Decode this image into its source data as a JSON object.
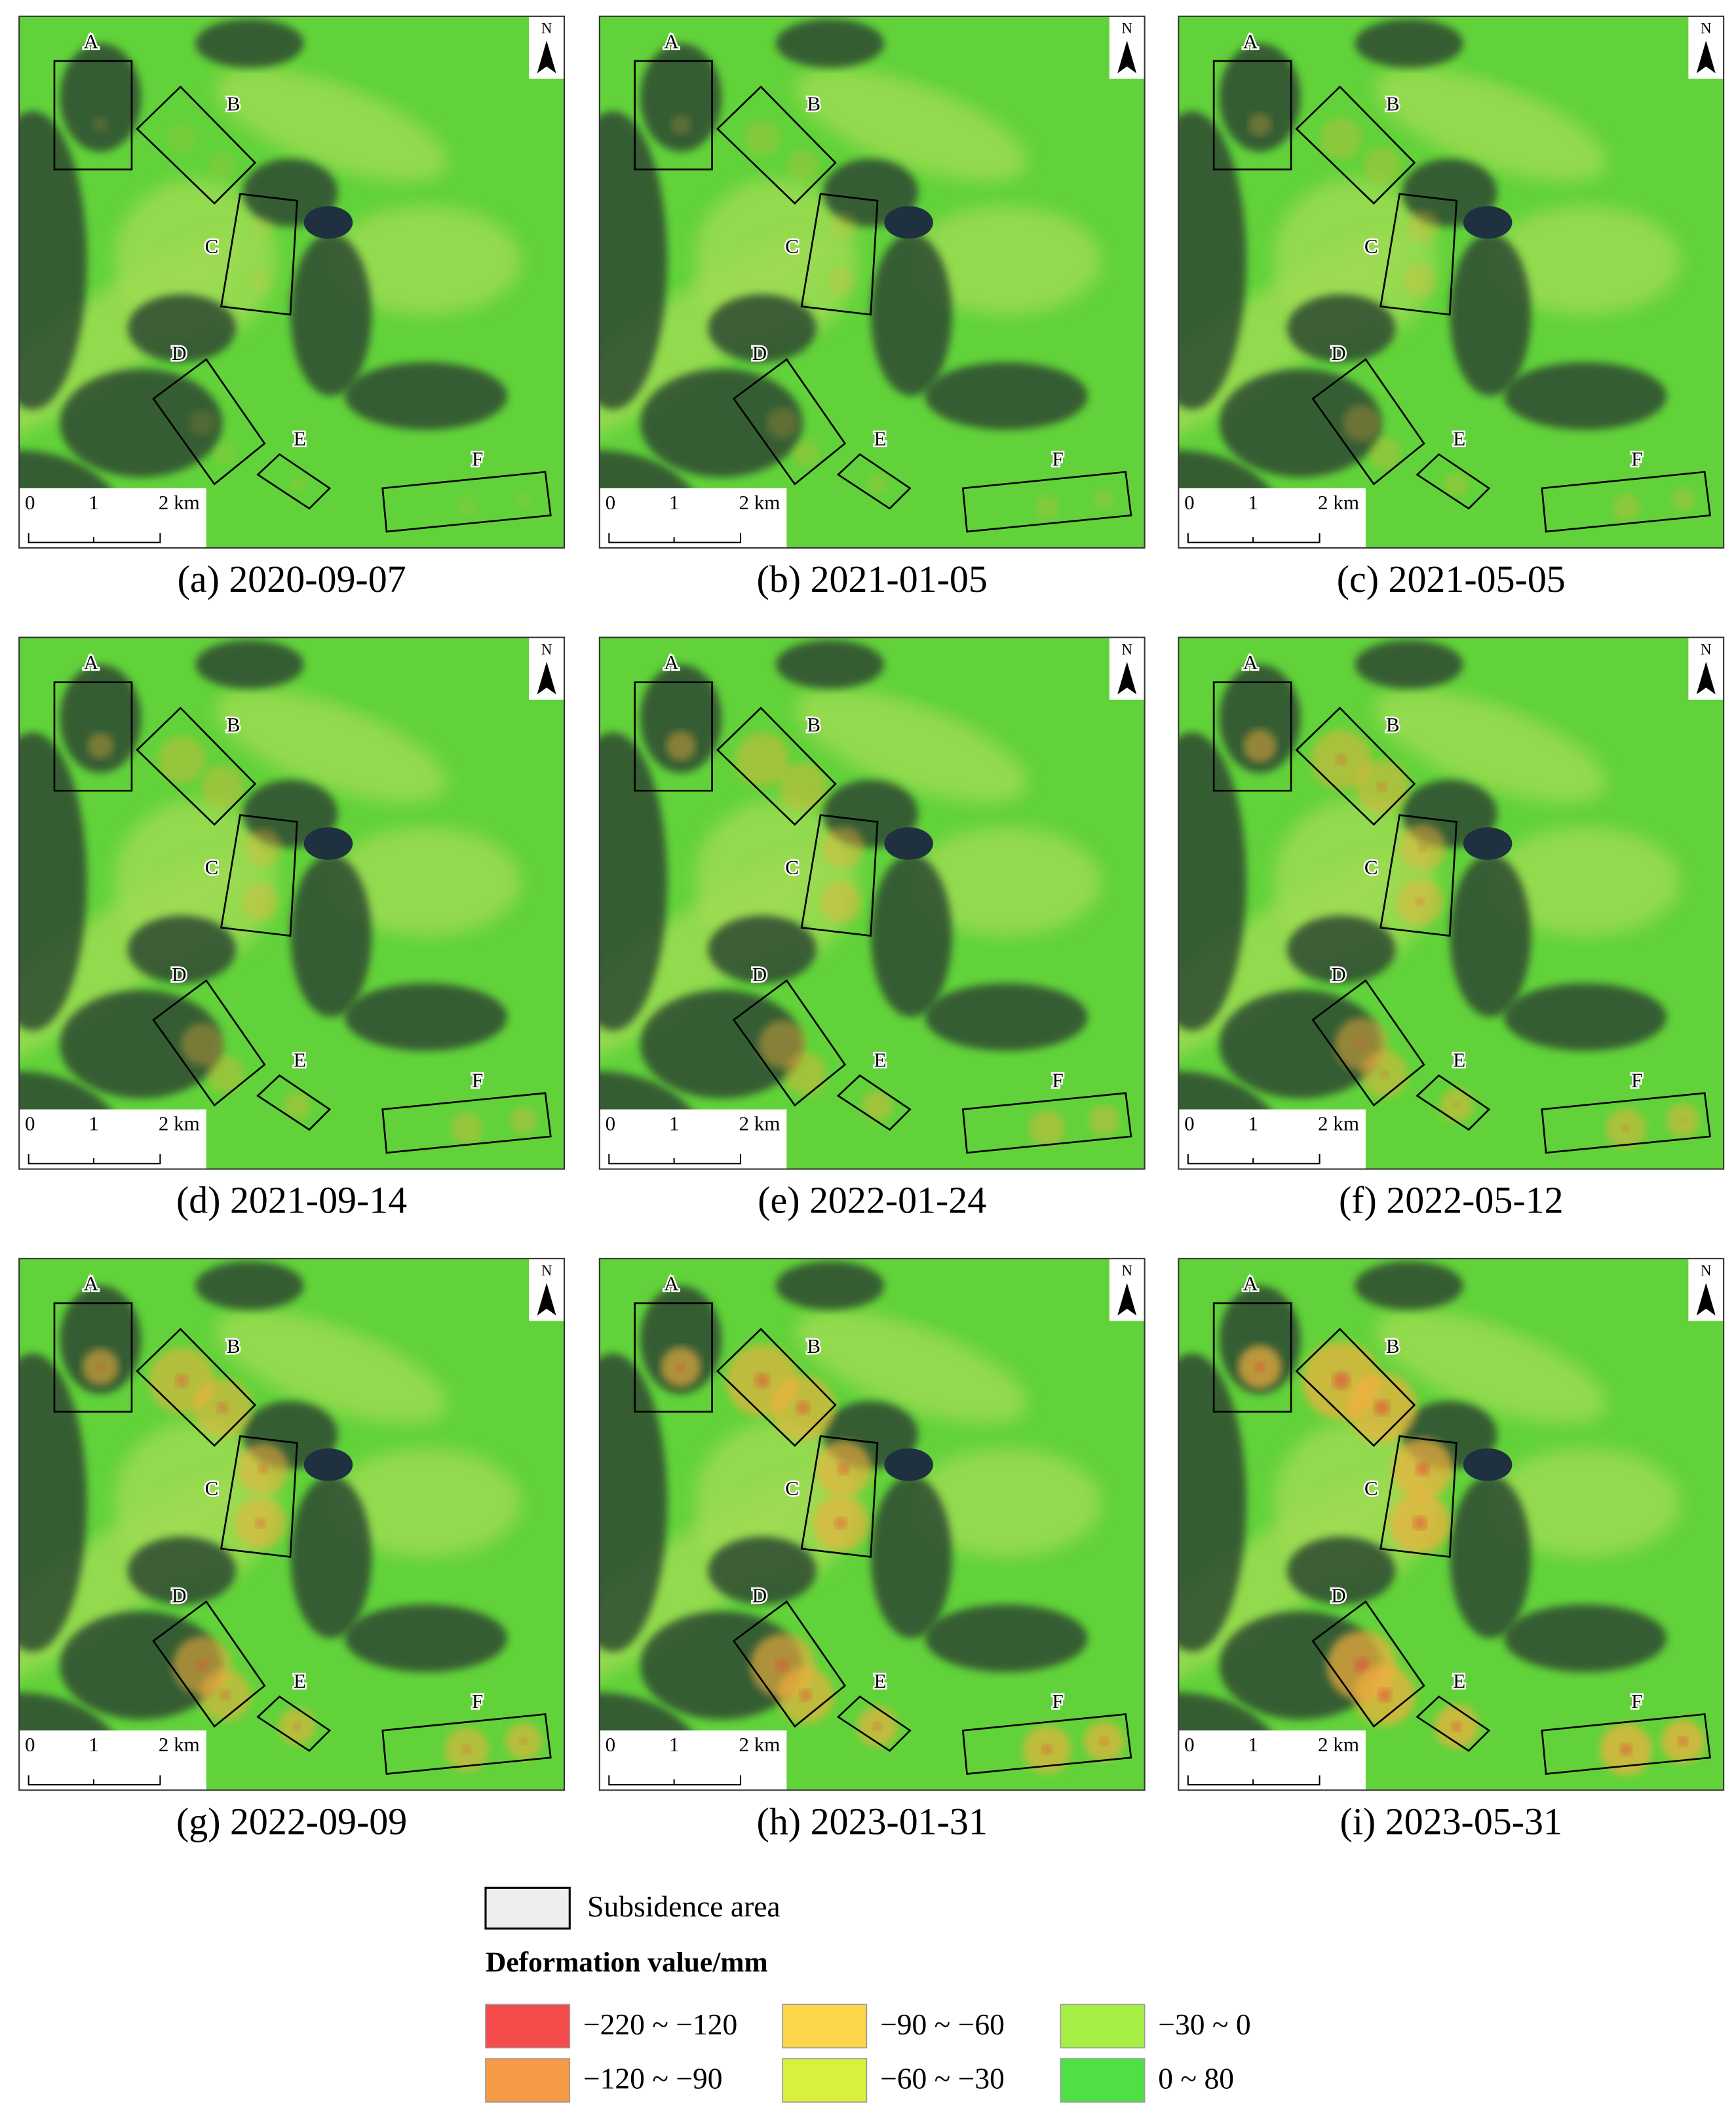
{
  "panels": [
    {
      "caption": "(a) 2020-09-07"
    },
    {
      "caption": "(b) 2021-01-05"
    },
    {
      "caption": "(c) 2021-05-05"
    },
    {
      "caption": "(d) 2021-09-14"
    },
    {
      "caption": "(e) 2022-01-24"
    },
    {
      "caption": "(f) 2022-05-12"
    },
    {
      "caption": "(g) 2022-09-09"
    },
    {
      "caption": "(h) 2023-01-31"
    },
    {
      "caption": "(i) 2023-05-31"
    }
  ],
  "box_labels": [
    "A",
    "B",
    "C",
    "D",
    "E",
    "F"
  ],
  "scale_bar": [
    "0",
    "1",
    "2 km"
  ],
  "north": "N",
  "legend": {
    "subsidence": "Subsidence area",
    "title": "Deformation value/mm",
    "classes": [
      {
        "label": "−220 ~ −120",
        "color": "#f44b4b"
      },
      {
        "label": "−120 ~ −90",
        "color": "#f79a46"
      },
      {
        "label": "−90 ~ −60",
        "color": "#fbd64a"
      },
      {
        "label": "−60 ~ −30",
        "color": "#d9f03c"
      },
      {
        "label": "−30 ~ 0",
        "color": "#a6f045"
      },
      {
        "label": "0 ~ 80",
        "color": "#4fe044"
      }
    ]
  }
}
